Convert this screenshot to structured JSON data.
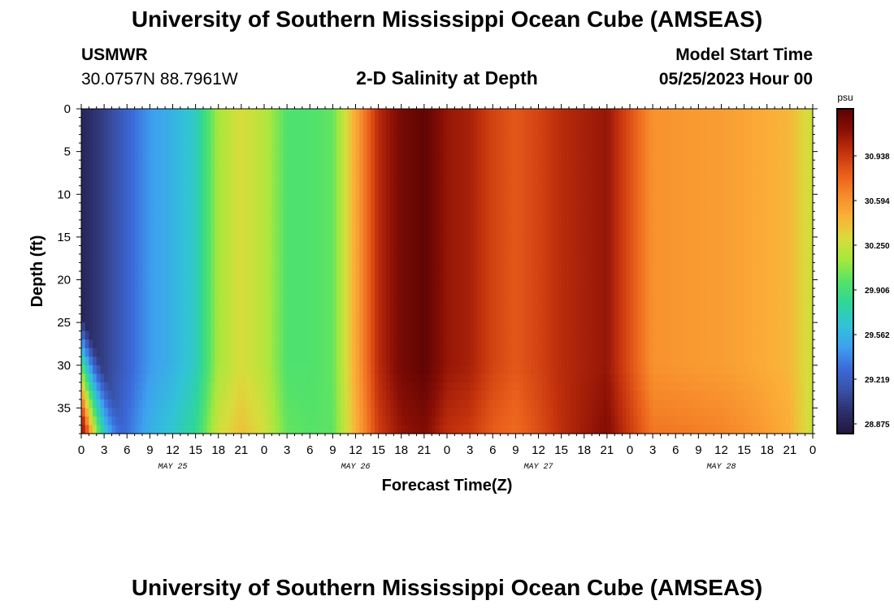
{
  "header": {
    "title": "University of Southern Mississippi Ocean Cube (AMSEAS)",
    "station": "USMWR",
    "coords": "30.0757N  88.7961W",
    "subtitle": "2-D Salinity at Depth",
    "model_start_label": "Model Start Time",
    "model_start_value": "05/25/2023 Hour 00"
  },
  "footer": {
    "title": "University of Southern Mississippi Ocean Cube (AMSEAS)"
  },
  "chart_data": {
    "type": "heatmap",
    "title": "2-D Salinity at Depth",
    "xlabel": "Forecast Time(Z)",
    "ylabel": "Depth (ft)",
    "x_tick_labels": [
      "0",
      "3",
      "6",
      "9",
      "12",
      "15",
      "18",
      "21",
      "0",
      "3",
      "6",
      "9",
      "12",
      "15",
      "18",
      "21",
      "0",
      "3",
      "6",
      "9",
      "12",
      "15",
      "18",
      "21",
      "0",
      "3",
      "6",
      "9",
      "12",
      "15",
      "18",
      "21",
      "0"
    ],
    "day_labels": [
      "MAY 25",
      "MAY 26",
      "MAY 27",
      "MAY 28"
    ],
    "xlim_hours": [
      0,
      96
    ],
    "y_ticks": [
      0,
      5,
      10,
      15,
      20,
      25,
      30,
      35
    ],
    "ylim": [
      0,
      38
    ],
    "y_inverted": true,
    "units": "psu",
    "colorbar_ticks": [
      "28.875",
      "29.219",
      "29.562",
      "29.906",
      "30.250",
      "30.594",
      "30.938"
    ],
    "colorbar_range": [
      28.8,
      31.3
    ],
    "colormap": [
      "#23173e",
      "#2c2f6b",
      "#3950a6",
      "#3b6ad9",
      "#3ea0f0",
      "#31c3d8",
      "#2ed69a",
      "#53e26a",
      "#a4e83e",
      "#d8dc3c",
      "#fbb039",
      "#f78a2b",
      "#e85d1a",
      "#c4320d",
      "#8a0f05",
      "#5a0303"
    ],
    "hours": [
      0,
      3,
      6,
      9,
      12,
      15,
      18,
      21,
      24,
      27,
      30,
      33,
      36,
      39,
      42,
      45,
      48,
      51,
      54,
      57,
      60,
      63,
      66,
      69,
      72,
      75,
      78,
      81,
      84,
      87,
      90,
      93,
      96
    ],
    "surface_salinity_psu": [
      28.9,
      29.05,
      29.25,
      29.45,
      29.55,
      29.7,
      30.15,
      30.3,
      30.2,
      29.95,
      29.95,
      30.0,
      30.5,
      31.0,
      31.2,
      31.28,
      31.1,
      31.05,
      30.9,
      30.82,
      30.9,
      31.0,
      31.05,
      31.1,
      30.85,
      30.6,
      30.58,
      30.56,
      30.55,
      30.52,
      30.48,
      30.44,
      30.25
    ]
  }
}
